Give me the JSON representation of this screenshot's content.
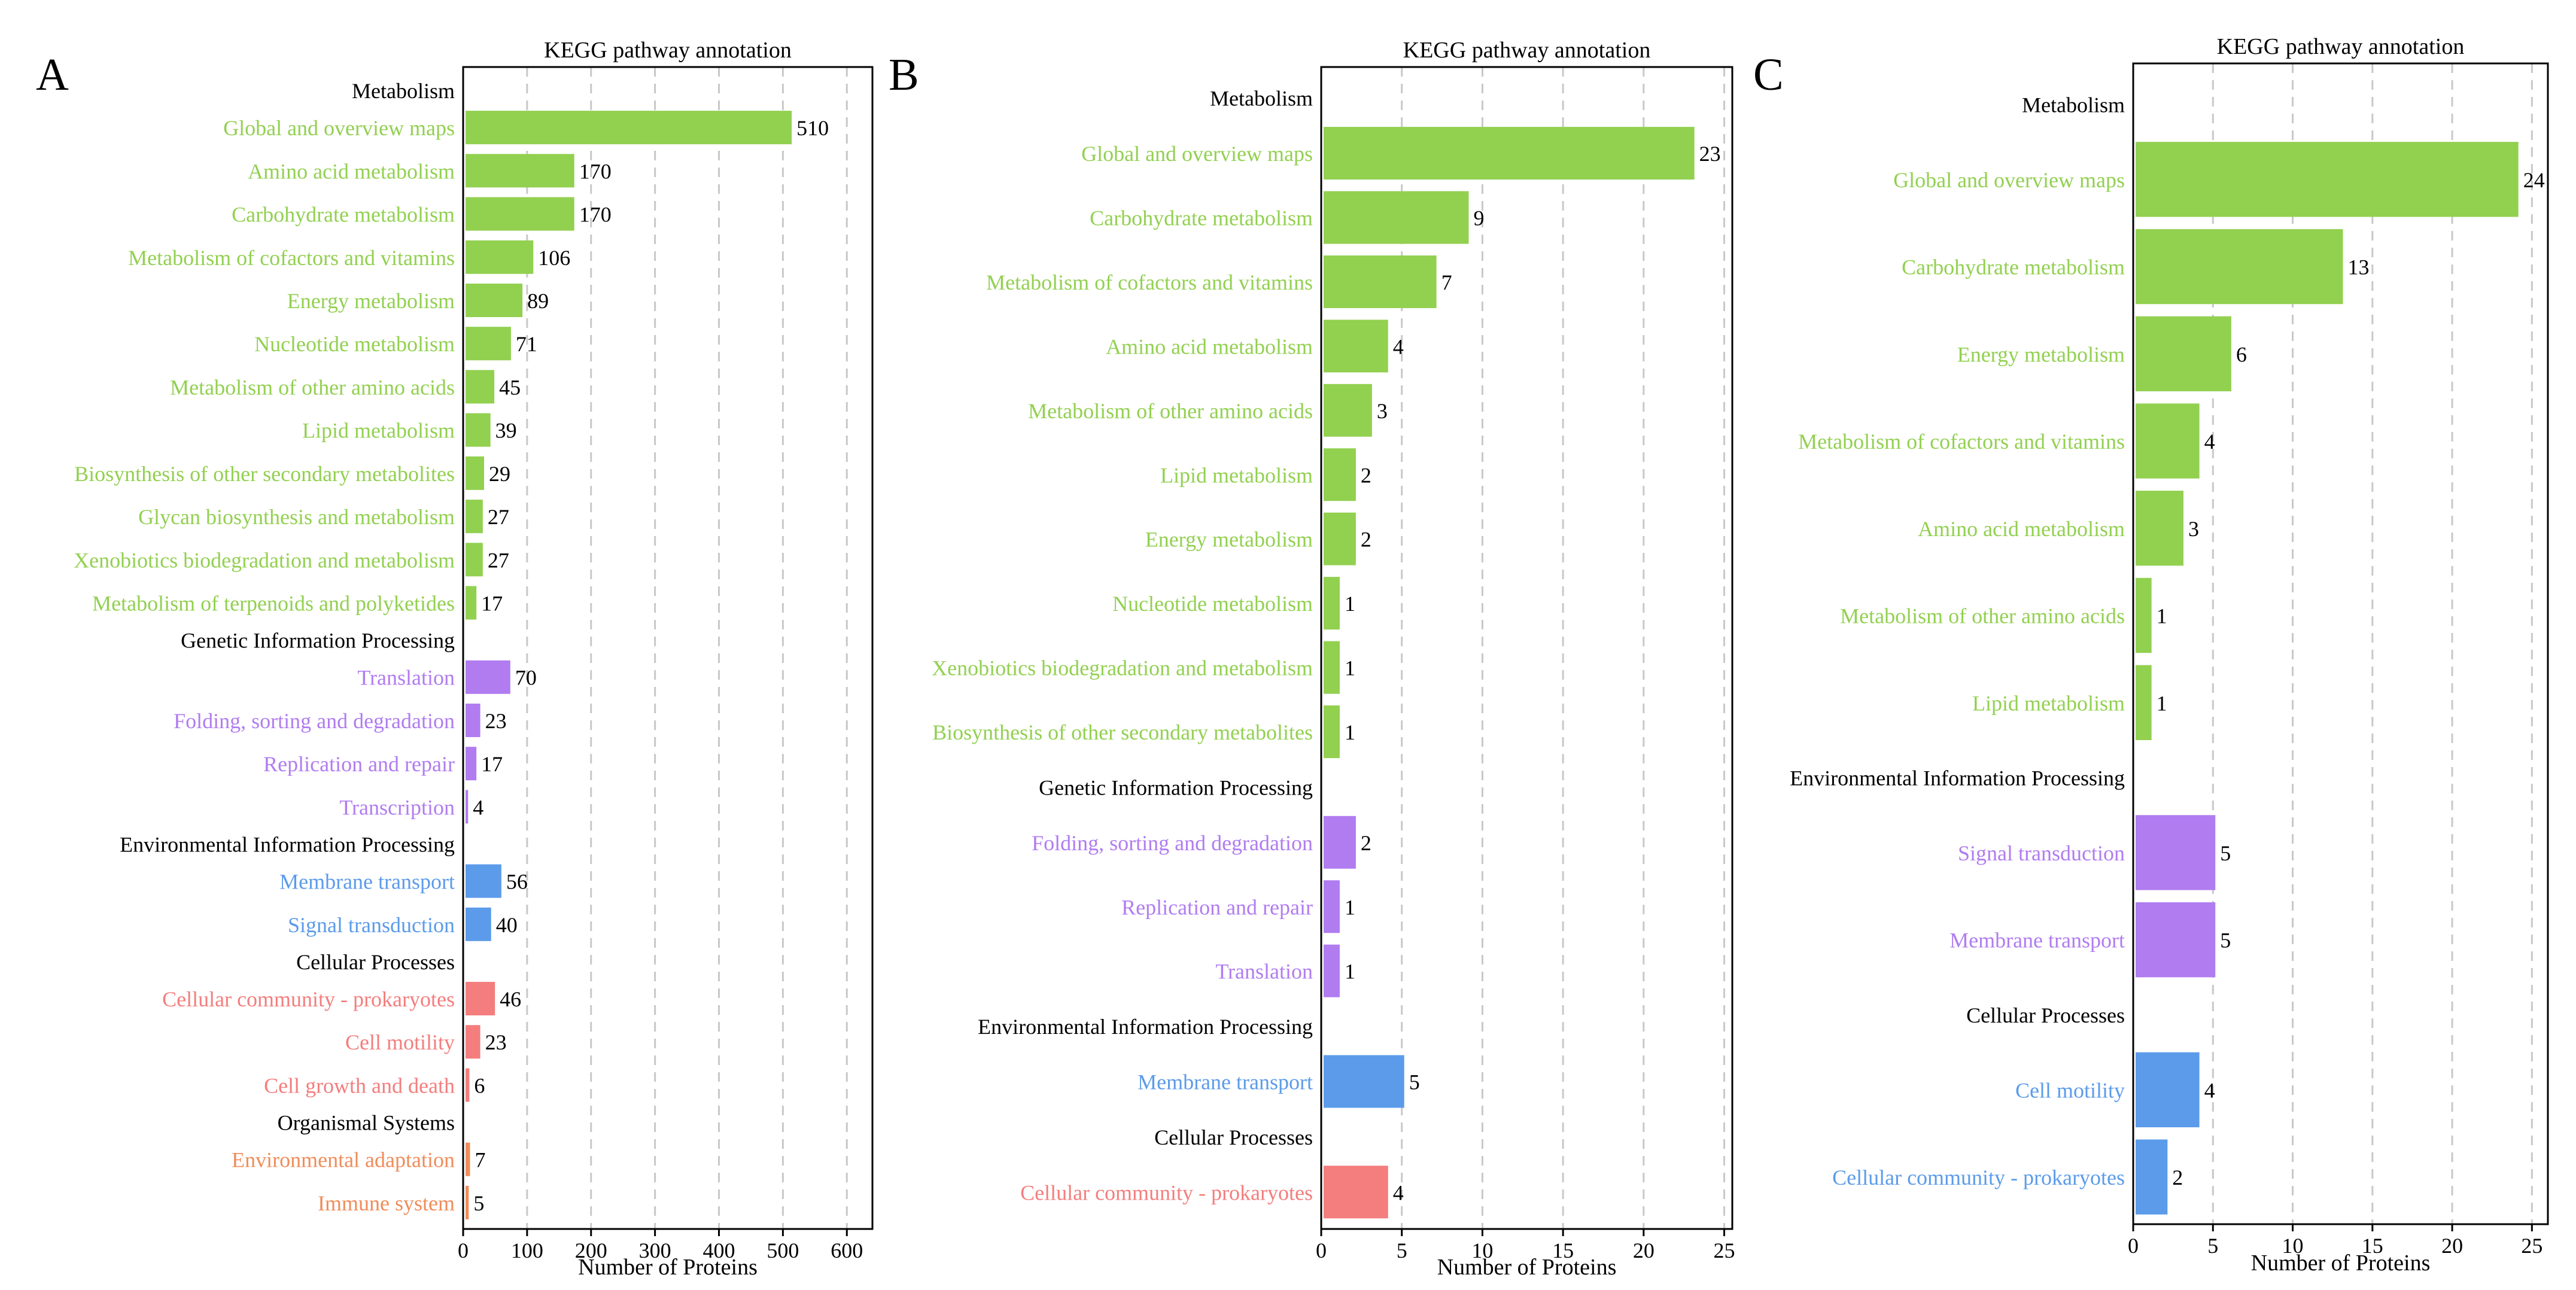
{
  "figure_title": "KEGG pathway annotation — panels A, B, C",
  "colors": {
    "metabolism": "#92d050",
    "genetic": "#b07cf0",
    "environmental": "#5b9bea",
    "cellular": "#f47d7d",
    "organismal": "#f08c5a",
    "text": "#000000",
    "grid": "#c8c8c8"
  },
  "chart_data": [
    {
      "type": "bar",
      "orientation": "horizontal",
      "panel_label": "A",
      "title": "KEGG pathway annotation",
      "xlabel": "Number of Proteins",
      "xlim": [
        0,
        640
      ],
      "xticks": [
        0,
        100,
        200,
        300,
        400,
        500,
        600
      ],
      "grid": "vertical dashed",
      "groups": [
        {
          "name": "Metabolism",
          "color_key": "metabolism",
          "items": [
            {
              "label": "Global and overview maps",
              "value": 510
            },
            {
              "label": "Amino acid metabolism",
              "value": 170
            },
            {
              "label": "Carbohydrate metabolism",
              "value": 170
            },
            {
              "label": "Metabolism of cofactors and vitamins",
              "value": 106
            },
            {
              "label": "Energy metabolism",
              "value": 89
            },
            {
              "label": "Nucleotide metabolism",
              "value": 71
            },
            {
              "label": "Metabolism of other amino acids",
              "value": 45
            },
            {
              "label": "Lipid metabolism",
              "value": 39
            },
            {
              "label": "Biosynthesis of other secondary metabolites",
              "value": 29
            },
            {
              "label": "Glycan biosynthesis and metabolism",
              "value": 27
            },
            {
              "label": "Xenobiotics biodegradation and metabolism",
              "value": 27
            },
            {
              "label": "Metabolism of terpenoids and polyketides",
              "value": 17
            }
          ]
        },
        {
          "name": "Genetic Information Processing",
          "color_key": "genetic",
          "items": [
            {
              "label": "Translation",
              "value": 70
            },
            {
              "label": "Folding, sorting and degradation",
              "value": 23
            },
            {
              "label": "Replication and repair",
              "value": 17
            },
            {
              "label": "Transcription",
              "value": 4
            }
          ]
        },
        {
          "name": "Environmental Information Processing",
          "color_key": "environmental",
          "items": [
            {
              "label": "Membrane transport",
              "value": 56
            },
            {
              "label": "Signal transduction",
              "value": 40
            }
          ]
        },
        {
          "name": "Cellular Processes",
          "color_key": "cellular",
          "items": [
            {
              "label": "Cellular community - prokaryotes",
              "value": 46
            },
            {
              "label": "Cell motility",
              "value": 23
            },
            {
              "label": "Cell growth and death",
              "value": 6
            }
          ]
        },
        {
          "name": "Organismal Systems",
          "color_key": "organismal",
          "items": [
            {
              "label": "Environmental adaptation",
              "value": 7
            },
            {
              "label": "Immune system",
              "value": 5
            }
          ]
        }
      ]
    },
    {
      "type": "bar",
      "orientation": "horizontal",
      "panel_label": "B",
      "title": "KEGG pathway annotation",
      "xlabel": "Number of Proteins",
      "xlim": [
        0,
        25.5
      ],
      "xticks": [
        0,
        5,
        10,
        15,
        20,
        25
      ],
      "grid": "vertical dashed",
      "groups": [
        {
          "name": "Metabolism",
          "color_key": "metabolism",
          "items": [
            {
              "label": "Global and overview maps",
              "value": 23
            },
            {
              "label": "Carbohydrate metabolism",
              "value": 9
            },
            {
              "label": "Metabolism of cofactors and vitamins",
              "value": 7
            },
            {
              "label": "Amino acid metabolism",
              "value": 4
            },
            {
              "label": "Metabolism of other amino acids",
              "value": 3
            },
            {
              "label": "Lipid metabolism",
              "value": 2
            },
            {
              "label": "Energy metabolism",
              "value": 2
            },
            {
              "label": "Nucleotide metabolism",
              "value": 1
            },
            {
              "label": "Xenobiotics biodegradation and metabolism",
              "value": 1
            },
            {
              "label": "Biosynthesis of other secondary metabolites",
              "value": 1
            }
          ]
        },
        {
          "name": "Genetic Information Processing",
          "color_key": "genetic",
          "items": [
            {
              "label": "Folding, sorting and degradation",
              "value": 2
            },
            {
              "label": "Replication and repair",
              "value": 1
            },
            {
              "label": "Translation",
              "value": 1
            }
          ]
        },
        {
          "name": "Environmental Information Processing",
          "color_key": "environmental",
          "items": [
            {
              "label": "Membrane transport",
              "value": 5
            }
          ]
        },
        {
          "name": "Cellular Processes",
          "color_key": "cellular",
          "items": [
            {
              "label": "Cellular community - prokaryotes",
              "value": 4
            }
          ]
        }
      ]
    },
    {
      "type": "bar",
      "orientation": "horizontal",
      "panel_label": "C",
      "title": "KEGG pathway annotation",
      "xlabel": "Number of Proteins",
      "xlim": [
        0,
        26
      ],
      "xticks": [
        0,
        5,
        10,
        15,
        20,
        25
      ],
      "grid": "vertical dashed",
      "groups": [
        {
          "name": "Metabolism",
          "color_key": "metabolism",
          "items": [
            {
              "label": "Global and overview maps",
              "value": 24
            },
            {
              "label": "Carbohydrate metabolism",
              "value": 13
            },
            {
              "label": "Energy metabolism",
              "value": 6
            },
            {
              "label": "Metabolism of cofactors and vitamins",
              "value": 4
            },
            {
              "label": "Amino acid metabolism",
              "value": 3
            },
            {
              "label": "Metabolism of other amino acids",
              "value": 1
            },
            {
              "label": "Lipid metabolism",
              "value": 1
            }
          ]
        },
        {
          "name": "Environmental Information Processing",
          "color_key": "genetic",
          "items": [
            {
              "label": "Signal transduction",
              "value": 5
            },
            {
              "label": "Membrane transport",
              "value": 5
            }
          ]
        },
        {
          "name": "Cellular Processes",
          "color_key": "environmental",
          "items": [
            {
              "label": "Cell motility",
              "value": 4
            },
            {
              "label": "Cellular community - prokaryotes",
              "value": 2
            }
          ]
        }
      ]
    }
  ]
}
